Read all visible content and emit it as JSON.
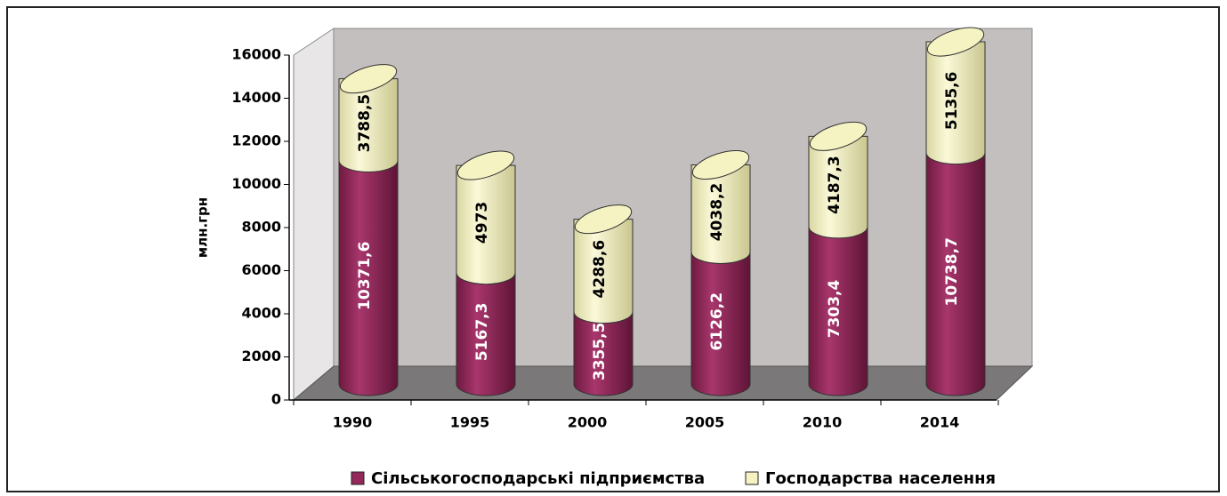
{
  "chart_data": {
    "type": "bar",
    "stacked": true,
    "y_label": "млн.грн",
    "categories": [
      "1990",
      "1995",
      "2000",
      "2005",
      "2010",
      "2014"
    ],
    "series": [
      {
        "name": "Сільськогосподарські підприємства",
        "color": "#92295a",
        "values": [
          10371.6,
          5167.3,
          3355.5,
          6126.2,
          7303.4,
          10738.7
        ],
        "value_labels": [
          "10371,6",
          "5167,3",
          "3355,5",
          "6126,2",
          "7303,4",
          "10738,7"
        ]
      },
      {
        "name": "Господарства населення",
        "color": "#f6f3c2",
        "values": [
          3788.5,
          4973,
          4288.6,
          4038.2,
          4187.3,
          5135.6
        ],
        "value_labels": [
          "3788,5",
          "4973",
          "4288,6",
          "4038,2",
          "4187,3",
          "5135,6"
        ]
      }
    ],
    "ylim": [
      0,
      16000
    ],
    "yticks": [
      0,
      2000,
      4000,
      6000,
      8000,
      10000,
      12000,
      14000,
      16000
    ]
  }
}
